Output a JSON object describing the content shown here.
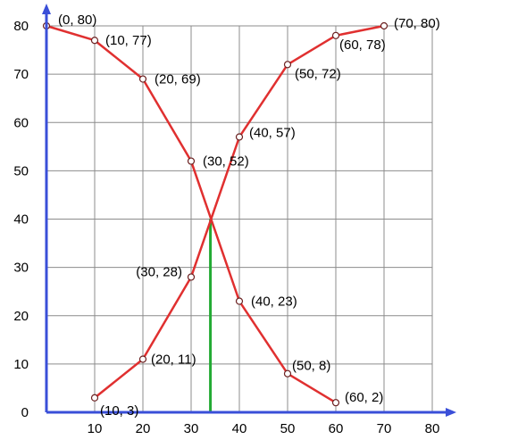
{
  "chart_data": {
    "type": "line",
    "xlim": [
      0,
      80
    ],
    "ylim": [
      0,
      80
    ],
    "x_ticks": [
      10,
      20,
      30,
      40,
      50,
      60,
      70,
      80
    ],
    "y_ticks": [
      0,
      10,
      20,
      30,
      40,
      50,
      60,
      70,
      80
    ],
    "grid": true,
    "series": [
      {
        "color": "#e03030",
        "x": [
          0,
          10,
          20,
          30,
          40,
          50,
          60
        ],
        "y": [
          80,
          77,
          69,
          52,
          23,
          8,
          2
        ],
        "labels": [
          "(0, 80)",
          "(10, 77)",
          "(20, 69)",
          "(30, 52)",
          "(40, 23)",
          "(50, 8)",
          "(60, 2)"
        ]
      },
      {
        "color": "#e03030",
        "x": [
          10,
          20,
          30,
          40,
          50,
          60,
          70
        ],
        "y": [
          3,
          11,
          28,
          57,
          72,
          78,
          80
        ],
        "labels": [
          "(10, 3)",
          "(20, 11)",
          "(30, 28)",
          "(40, 57)",
          "(50, 72)",
          "(60, 78)",
          "(70, 80)"
        ]
      }
    ],
    "intersection": {
      "x": 34,
      "y": 40,
      "color": "#22aa33"
    },
    "axis_color": "#3a4fd8",
    "grid_color": "#8c8c8c"
  }
}
